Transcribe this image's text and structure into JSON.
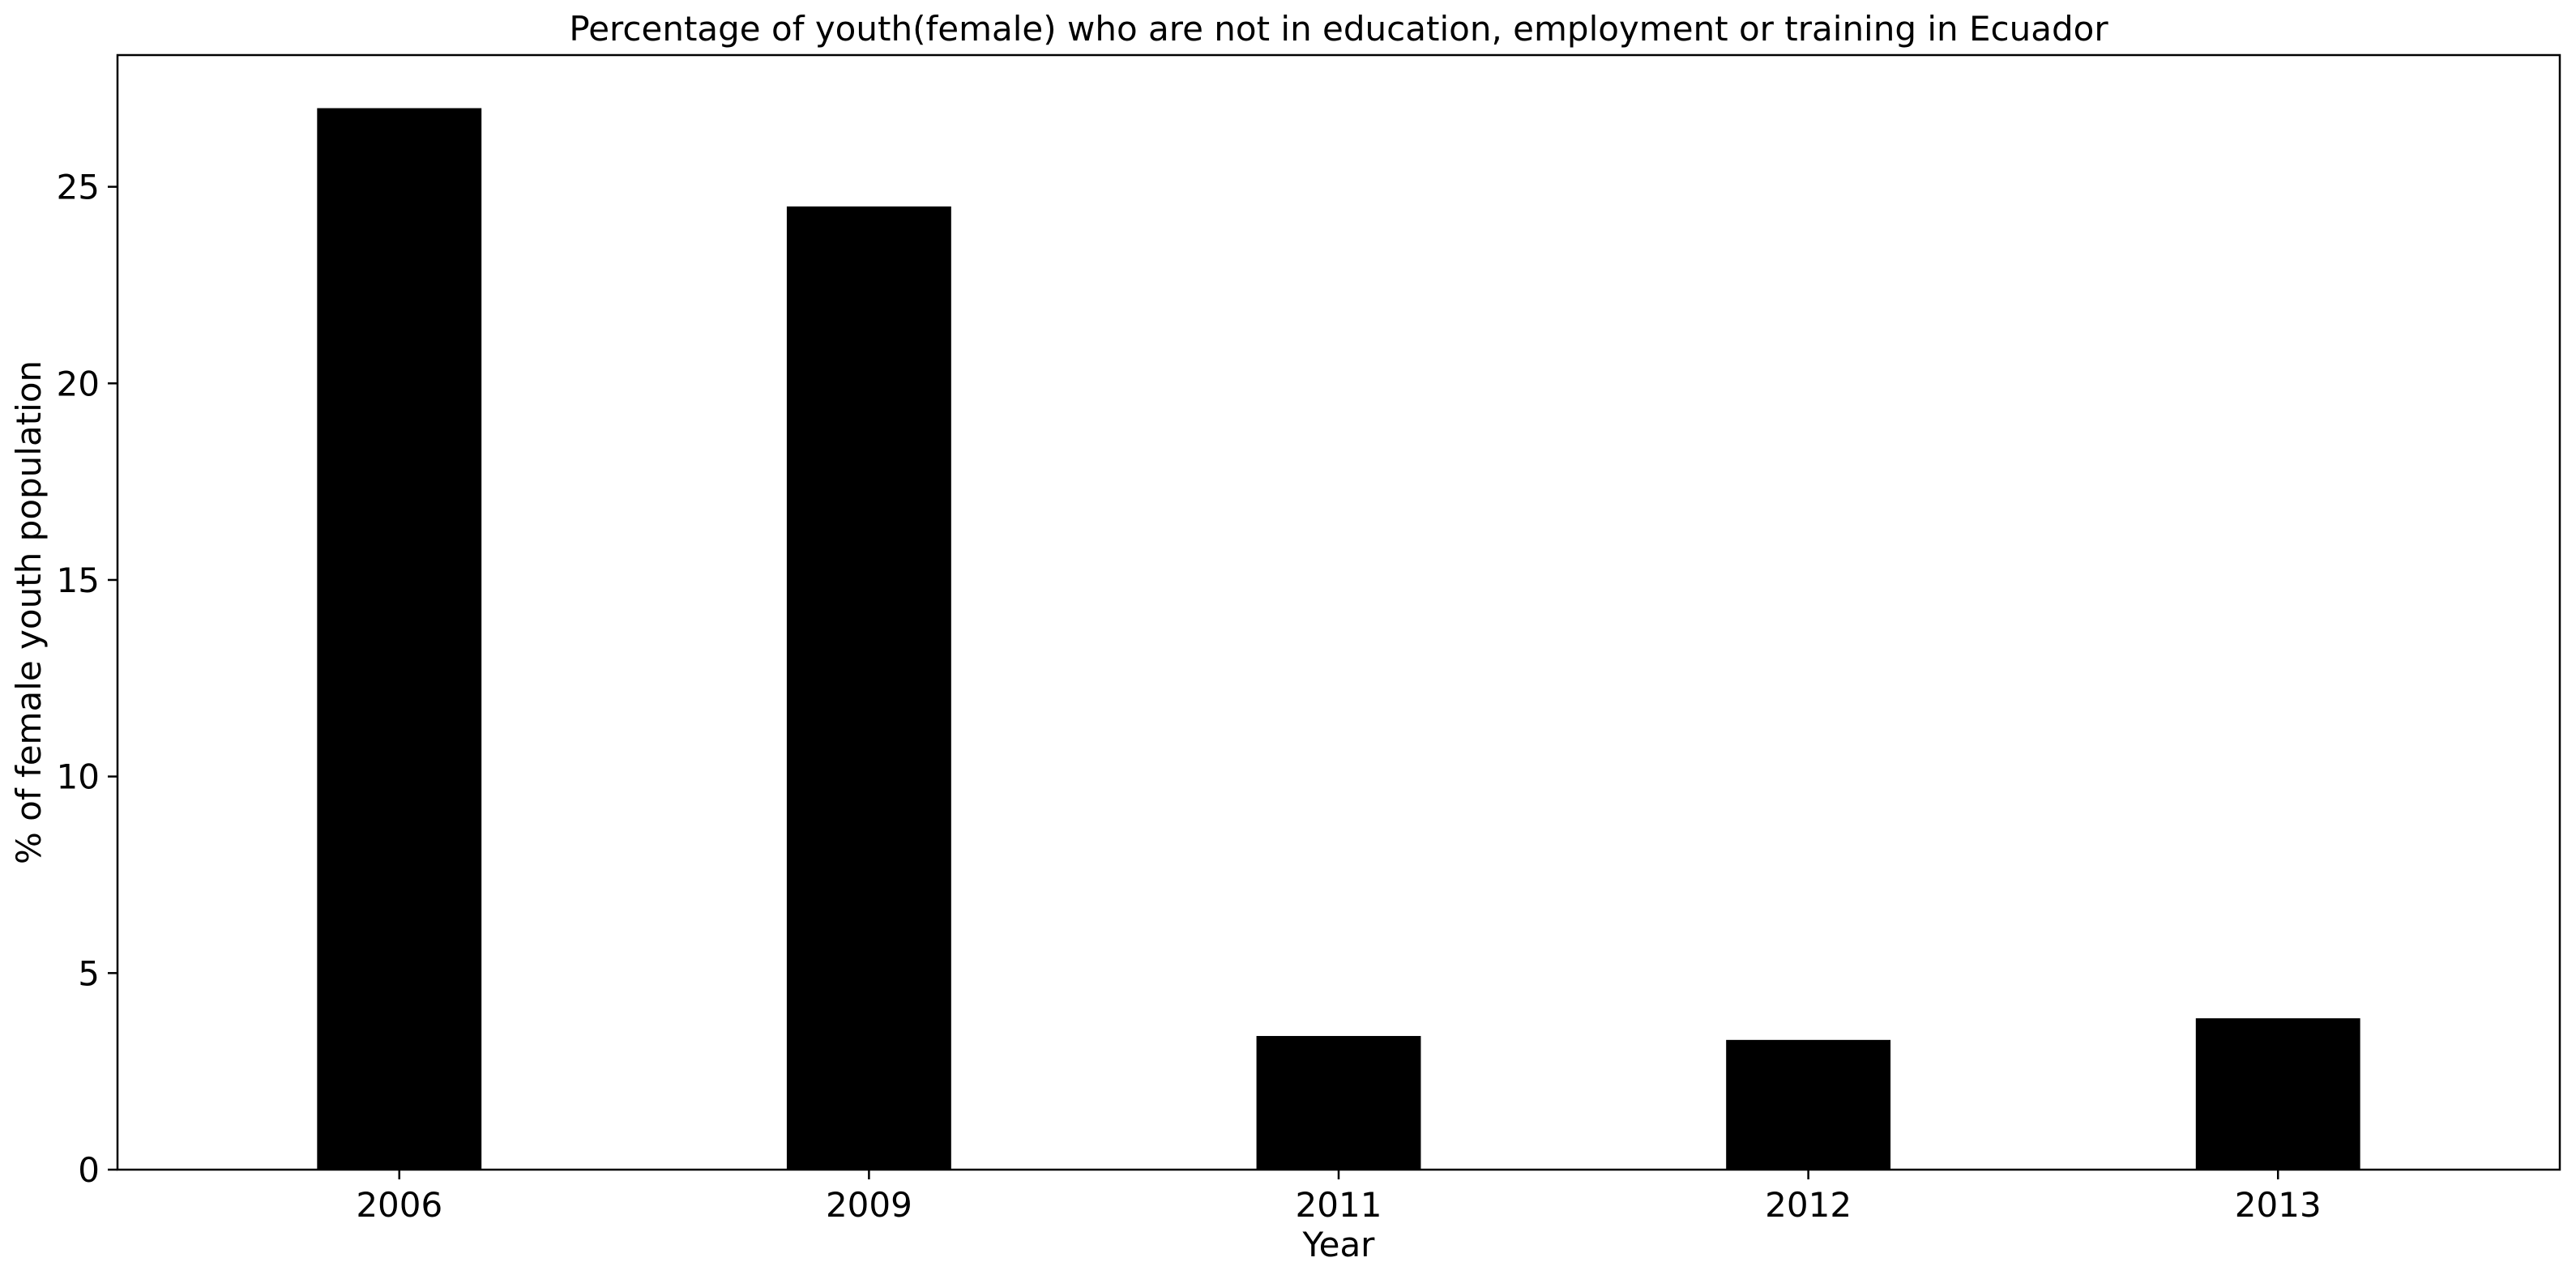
{
  "chart_data": {
    "type": "bar",
    "title": "Percentage of youth(female) who are not in education, employment or training in Ecuador",
    "xlabel": "Year",
    "ylabel": "% of female youth population",
    "categories": [
      "2006",
      "2009",
      "2011",
      "2012",
      "2013"
    ],
    "values": [
      27.0,
      24.5,
      3.4,
      3.3,
      3.85
    ],
    "ylim": [
      0,
      28.35
    ],
    "yticks": [
      0,
      5,
      10,
      15,
      20,
      25
    ],
    "bar_color": "#000000",
    "grid": false,
    "legend": "none"
  }
}
